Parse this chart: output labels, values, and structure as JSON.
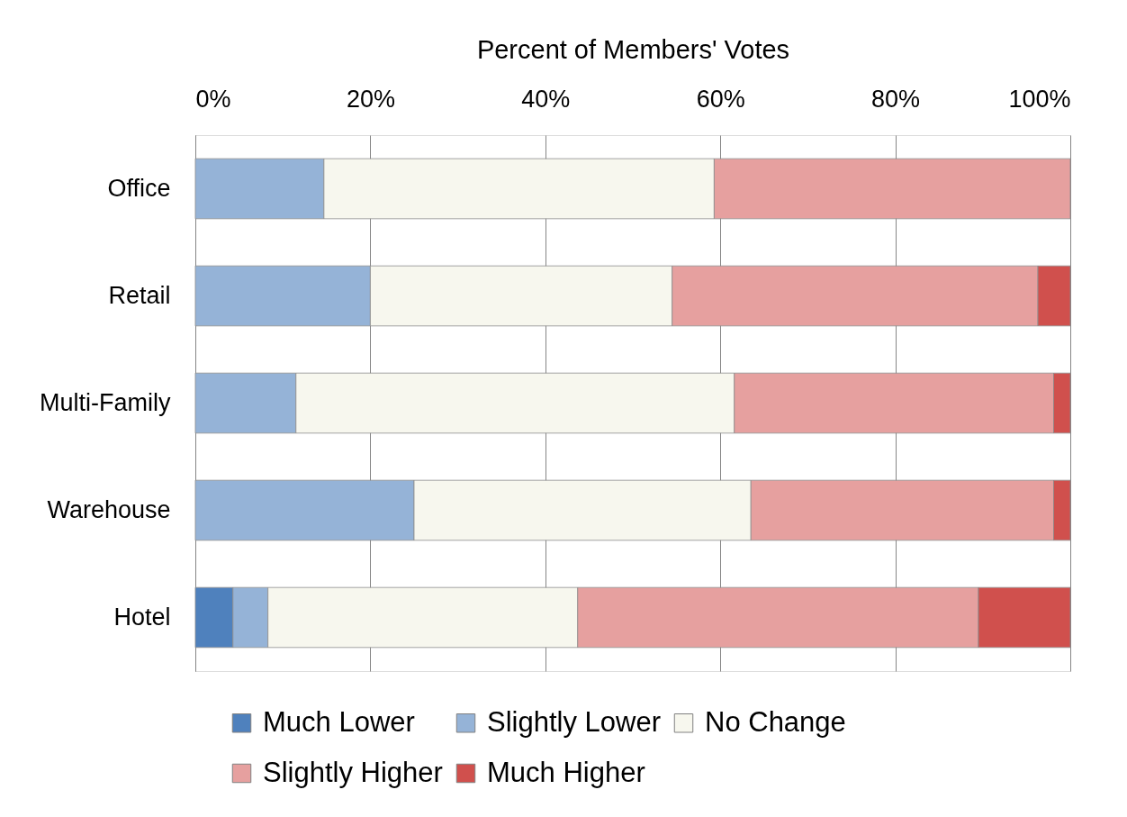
{
  "chart_data": {
    "type": "bar",
    "orientation": "horizontal",
    "stacked": true,
    "xlabel": "Percent of Members' Votes",
    "categories": [
      "Office",
      "Retail",
      "Multi-Family",
      "Warehouse",
      "Hotel"
    ],
    "series": [
      {
        "name": "Much Lower",
        "color": "#4f81bd",
        "values": [
          0,
          0,
          0,
          0,
          4.3
        ]
      },
      {
        "name": "Slightly Lower",
        "color": "#95b3d7",
        "values": [
          14.7,
          20.0,
          11.5,
          25.0,
          4.0
        ]
      },
      {
        "name": "No Change",
        "color": "#f7f7ee",
        "values": [
          44.6,
          34.5,
          50.1,
          38.5,
          35.4
        ]
      },
      {
        "name": "Slightly Higher",
        "color": "#e6a09f",
        "values": [
          40.7,
          41.8,
          36.5,
          34.6,
          45.8
        ]
      },
      {
        "name": "Much Higher",
        "color": "#d0504d",
        "values": [
          0,
          3.7,
          1.9,
          1.9,
          10.5
        ]
      }
    ],
    "xlim": [
      0,
      100
    ],
    "xticks": [
      {
        "value": 0,
        "label": "0%"
      },
      {
        "value": 20,
        "label": "20%"
      },
      {
        "value": 40,
        "label": "40%"
      },
      {
        "value": 60,
        "label": "60%"
      },
      {
        "value": 80,
        "label": "80%"
      },
      {
        "value": 100,
        "label": "100%"
      }
    ],
    "grid": "x",
    "legend": "bottom"
  }
}
